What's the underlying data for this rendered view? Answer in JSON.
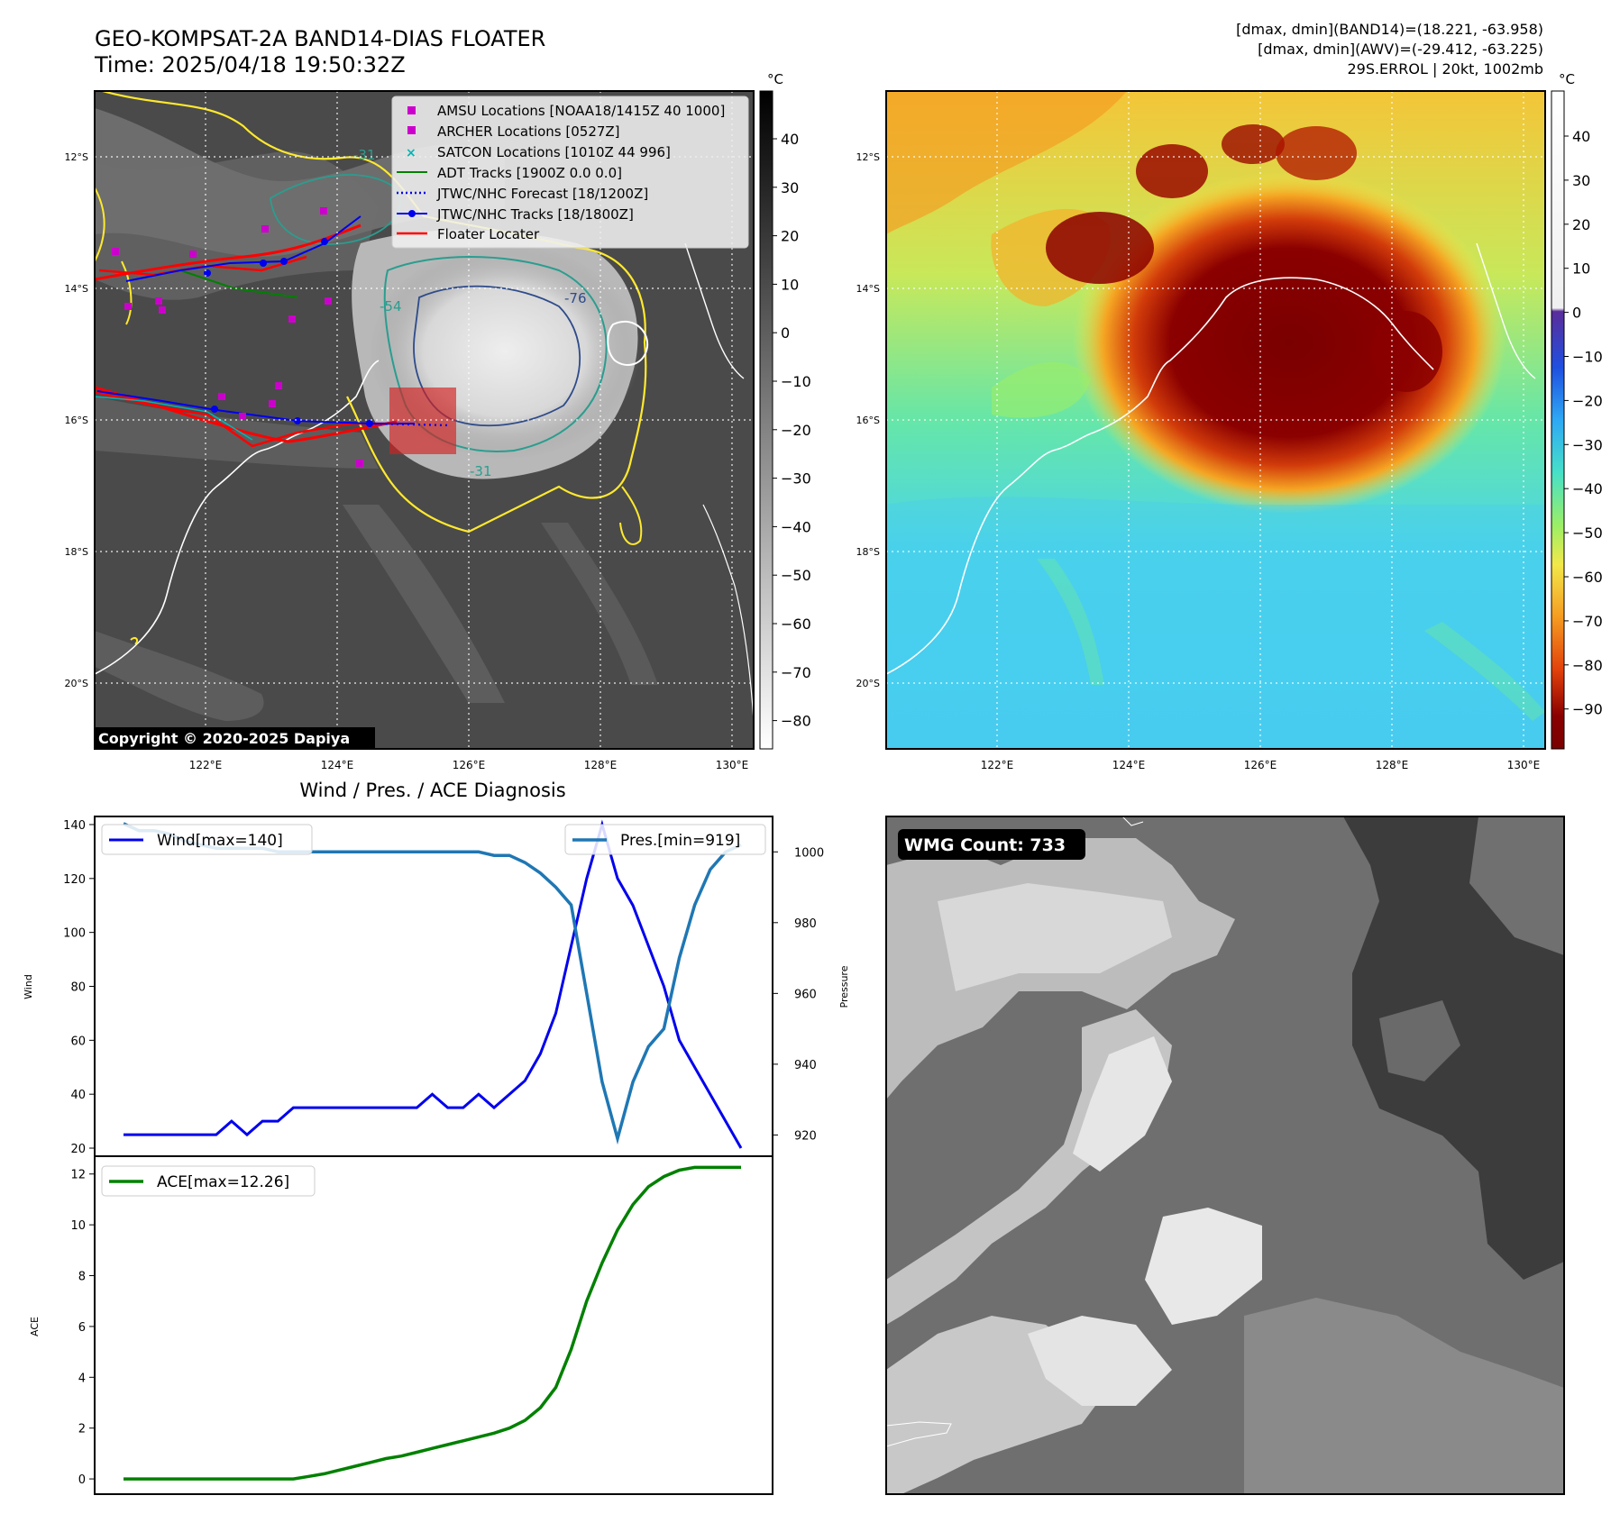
{
  "header": {
    "title": "GEO-KOMPSAT-2A BAND14-DIAS FLOATER",
    "time": "Time: 2025/04/18 19:50:32Z",
    "dmax_band14": "[dmax, dmin](BAND14)=(18.221, -63.958)",
    "dmax_awv": "[dmax, dmin](AWV)=(-29.412, -63.225)",
    "storm_info": "29S.ERROL | 20kt, 1002mb"
  },
  "colors": {
    "wind": "#0000ee",
    "pressure": "#1f77b4",
    "ace": "#008000",
    "track_red": "#ff0000",
    "contour_yellow": "#ffee33",
    "contour_teal": "#2a9d8f"
  },
  "map_left": {
    "lat_labels": [
      "12°S",
      "14°S",
      "16°S",
      "18°S",
      "20°S"
    ],
    "lon_labels": [
      "122°E",
      "124°E",
      "126°E",
      "128°E",
      "130°E"
    ],
    "colorbar_unit": "°C",
    "colorbar_ticks": [
      "40",
      "30",
      "20",
      "10",
      "0",
      "−10",
      "−20",
      "−30",
      "−40",
      "−50",
      "−60",
      "−70",
      "−80"
    ],
    "contour_labels": [
      "-76",
      "-31",
      "-31",
      "-54"
    ],
    "copyright": "Copyright © 2020-2025 Dapiya",
    "legend": [
      {
        "label": "AMSU Locations [NOAA18/1415Z 40 1000]",
        "icon": "square-marker-icon",
        "color": "#cc00cc"
      },
      {
        "label": "ARCHER Locations [0527Z]",
        "icon": "square-marker-icon",
        "color": "#cc00cc"
      },
      {
        "label": "SATCON Locations [1010Z 44 996]",
        "icon": "x-marker-icon",
        "color": "#00b5b5"
      },
      {
        "label": "ADT Tracks [1900Z 0.0 0.0]",
        "icon": "line-icon",
        "color": "#008000"
      },
      {
        "label": "JTWC/NHC Forecast [18/1200Z]",
        "icon": "dotted-line-icon",
        "color": "#0000ee"
      },
      {
        "label": "JTWC/NHC Tracks [18/1800Z]",
        "icon": "line-dot-icon",
        "color": "#0000ee"
      },
      {
        "label": "Floater Locater",
        "icon": "line-icon",
        "color": "#ff0000"
      }
    ]
  },
  "map_right": {
    "lat_labels": [
      "12°S",
      "14°S",
      "16°S",
      "18°S",
      "20°S"
    ],
    "lon_labels": [
      "122°E",
      "124°E",
      "126°E",
      "128°E",
      "130°E"
    ],
    "colorbar_unit": "°C",
    "colorbar_ticks": [
      "40",
      "30",
      "20",
      "10",
      "0",
      "−10",
      "−20",
      "−30",
      "−40",
      "−50",
      "−60",
      "−70",
      "−80",
      "−90"
    ]
  },
  "diagnosis": {
    "title": "Wind / Pres. / ACE Diagnosis",
    "wmg_label": "WMG Count: 733"
  },
  "chart_data": [
    {
      "type": "line",
      "title": "Wind / Pres. / ACE Diagnosis",
      "ylabel": "Wind",
      "y2label": "Pressure",
      "ylim": [
        17,
        143
      ],
      "y2lim": [
        914,
        1010
      ],
      "yticks": [
        20,
        40,
        60,
        80,
        100,
        120,
        140
      ],
      "y2ticks": [
        920,
        940,
        960,
        980,
        1000
      ],
      "series": [
        {
          "name": "Wind[max=140]",
          "axis": "left",
          "values": [
            25,
            25,
            25,
            25,
            25,
            25,
            25,
            30,
            25,
            30,
            30,
            35,
            35,
            35,
            35,
            35,
            35,
            35,
            35,
            35,
            40,
            35,
            35,
            40,
            35,
            40,
            45,
            55,
            70,
            95,
            120,
            140,
            120,
            110,
            95,
            80,
            60,
            50,
            40,
            30,
            20
          ]
        },
        {
          "name": "Pres.[min=919]",
          "axis": "right",
          "values": [
            1008,
            1006,
            1006,
            1005,
            1003,
            1002,
            1001,
            1001,
            1001,
            1001,
            1000,
            1000,
            1000,
            1000,
            1000,
            1000,
            1000,
            1000,
            1000,
            1000,
            1000,
            1000,
            1000,
            1000,
            999,
            999,
            997,
            994,
            990,
            985,
            960,
            935,
            919,
            935,
            945,
            950,
            970,
            985,
            995,
            1000,
            1002
          ]
        }
      ]
    },
    {
      "type": "line",
      "ylabel": "ACE",
      "ylim": [
        -0.6,
        12.7
      ],
      "yticks": [
        0,
        2,
        4,
        6,
        8,
        10,
        12
      ],
      "series": [
        {
          "name": "ACE[max=12.26]",
          "values": [
            0,
            0,
            0,
            0,
            0,
            0,
            0,
            0,
            0,
            0,
            0,
            0,
            0.1,
            0.2,
            0.35,
            0.5,
            0.65,
            0.8,
            0.9,
            1.05,
            1.2,
            1.35,
            1.5,
            1.65,
            1.8,
            2.0,
            2.3,
            2.8,
            3.6,
            5.1,
            7.0,
            8.5,
            9.8,
            10.8,
            11.5,
            11.9,
            12.15,
            12.26,
            12.26,
            12.26,
            12.26
          ]
        }
      ]
    }
  ]
}
